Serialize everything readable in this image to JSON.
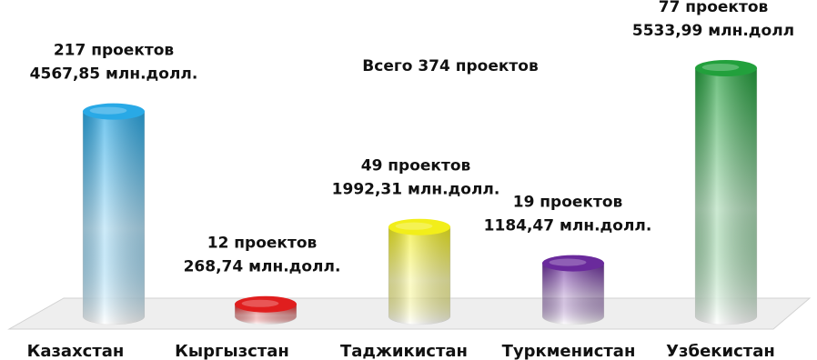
{
  "chart_data": {
    "type": "bar",
    "title": "Всего 374 проектов",
    "categories": [
      "Казахстан",
      "Кыргызстан",
      "Таджикистан",
      "Туркменистан",
      "Узбекистан"
    ],
    "series": [
      {
        "values": [
          4567.85,
          268.74,
          1992.31,
          1184.47,
          5533.99
        ]
      }
    ],
    "projects": [
      217,
      12,
      49,
      19,
      77
    ],
    "data_labels": [
      {
        "line1": "217 проектов",
        "line2": "4567,85 млн.долл."
      },
      {
        "line1": "12 проектов",
        "line2": "268,74 млн.долл."
      },
      {
        "line1": "49 проектов",
        "line2": "1992,31 млн.долл."
      },
      {
        "line1": "19 проектов",
        "line2": "1184,47 млн.долл."
      },
      {
        "line1": "77 проектов",
        "line2": "5533,99 млн.долл"
      }
    ],
    "colors": [
      "#29a9e6",
      "#e01e1e",
      "#f2ee1a",
      "#6a2a9c",
      "#22a03c"
    ],
    "style": "3d-cylinder, white-to-color vertical gradient",
    "ylim": [
      0,
      5533.99
    ],
    "grid": false,
    "legend": "none"
  }
}
